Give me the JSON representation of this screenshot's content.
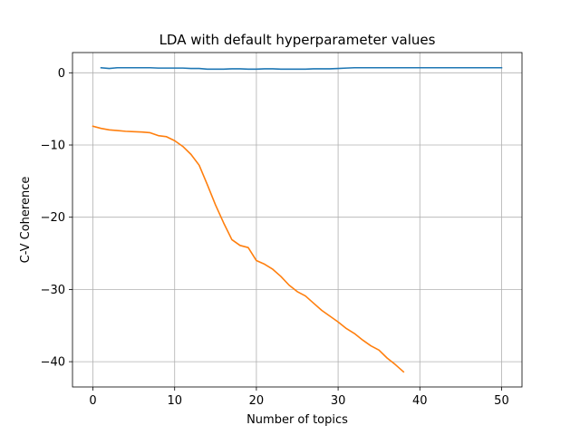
{
  "chart_data": {
    "type": "line",
    "title": "LDA with default hyperparameter values",
    "xlabel": "Number of topics",
    "ylabel": "C-V Coherence",
    "xlim": [
      -2.5,
      52.5
    ],
    "ylim": [
      -43.5,
      2.8
    ],
    "xticks": [
      0,
      10,
      20,
      30,
      40,
      50
    ],
    "yticks": [
      0,
      -10,
      -20,
      -30,
      -40
    ],
    "grid": true,
    "series": [
      {
        "color": "#1f77b4",
        "x": [
          1,
          2,
          3,
          4,
          5,
          6,
          7,
          8,
          9,
          10,
          11,
          12,
          13,
          14,
          15,
          16,
          17,
          18,
          19,
          20,
          21,
          22,
          23,
          24,
          25,
          26,
          27,
          28,
          29,
          30,
          31,
          32,
          33,
          34,
          35,
          36,
          37,
          38,
          39,
          40,
          41,
          42,
          43,
          44,
          45,
          46,
          47,
          48,
          49,
          50
        ],
        "y": [
          0.7,
          0.6,
          0.7,
          0.7,
          0.7,
          0.7,
          0.7,
          0.65,
          0.65,
          0.65,
          0.65,
          0.6,
          0.6,
          0.5,
          0.5,
          0.5,
          0.55,
          0.55,
          0.5,
          0.5,
          0.55,
          0.55,
          0.5,
          0.5,
          0.5,
          0.5,
          0.55,
          0.55,
          0.55,
          0.6,
          0.65,
          0.7,
          0.7,
          0.7,
          0.7,
          0.7,
          0.7,
          0.7,
          0.7,
          0.7,
          0.7,
          0.7,
          0.7,
          0.7,
          0.7,
          0.7,
          0.7,
          0.7,
          0.7,
          0.7
        ]
      },
      {
        "color": "#ff7f0e",
        "x": [
          0,
          1,
          2,
          3,
          4,
          5,
          6,
          7,
          8,
          9,
          10,
          11,
          12,
          13,
          14,
          15,
          16,
          17,
          18,
          19,
          20,
          21,
          22,
          23,
          24,
          25,
          26,
          27,
          28,
          29,
          30,
          31,
          32,
          33,
          34,
          35,
          36,
          37,
          38
        ],
        "y": [
          -7.4,
          -7.7,
          -7.9,
          -8.0,
          -8.1,
          -8.15,
          -8.2,
          -8.3,
          -8.7,
          -8.85,
          -9.4,
          -10.2,
          -11.3,
          -12.8,
          -15.5,
          -18.3,
          -20.8,
          -23.1,
          -23.9,
          -24.2,
          -26.0,
          -26.5,
          -27.2,
          -28.2,
          -29.4,
          -30.3,
          -30.9,
          -31.9,
          -32.9,
          -33.7,
          -34.5,
          -35.4,
          -36.1,
          -37.0,
          -37.8,
          -38.4,
          -39.5,
          -40.4,
          -41.4
        ]
      }
    ]
  }
}
